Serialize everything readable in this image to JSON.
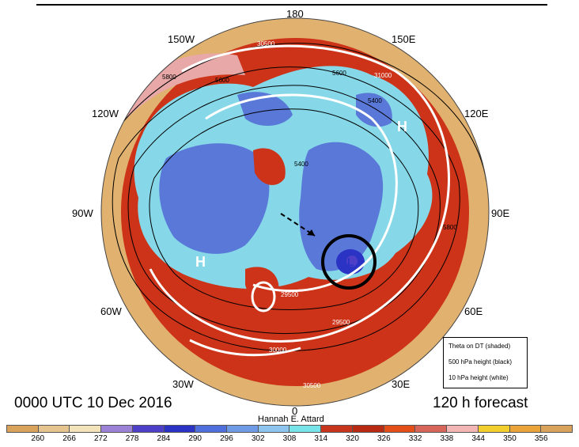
{
  "map": {
    "longitude_labels": {
      "lon_180": "180",
      "lon_150w": "150W",
      "lon_150e": "150E",
      "lon_120w": "120W",
      "lon_120e": "120E",
      "lon_90w": "90W",
      "lon_90e": "90E",
      "lon_60w": "60W",
      "lon_60e": "60E",
      "lon_30w": "30W",
      "lon_30e": "30E",
      "lon_0": "0"
    },
    "pressure_centers": [
      "H",
      "H",
      "L"
    ],
    "contour_labels_black": [
      "5400",
      "5600",
      "5800",
      "5600",
      "5400",
      "5800"
    ],
    "contour_labels_white": [
      "30500",
      "31000",
      "29500",
      "30000",
      "30500",
      "29500"
    ],
    "colors": {
      "ocean_ring": "#e0b16f",
      "warm": "#cc3318",
      "mid_blue": "#5a78d8",
      "light_cyan": "#86d8e8",
      "pink": "#e8a8a8"
    }
  },
  "footer": {
    "valid_time": "0000 UTC 10 Dec 2016",
    "forecast_hour": "120 h forecast",
    "author": "Hannah E. Attard"
  },
  "legend": {
    "line1": "Theta on DT (shaded)",
    "line2": "500 hPa height (black)",
    "line3": "10 hPa height (white)"
  },
  "colorbar": {
    "labels": [
      "260",
      "266",
      "272",
      "278",
      "284",
      "290",
      "296",
      "302",
      "308",
      "314",
      "320",
      "326",
      "332",
      "338",
      "344",
      "350",
      "356"
    ],
    "colors": [
      "#d9a35c",
      "#e6c490",
      "#f2e3bb",
      "#9b82d6",
      "#4e3fc9",
      "#2b33c4",
      "#4e6fdc",
      "#6f9be6",
      "#8ec5ee",
      "#76e4e8",
      "#c7351c",
      "#b82a12",
      "#e44e18",
      "#d8655a",
      "#f3b6b4",
      "#f2cf2c",
      "#eaa43a",
      "#d9a35c"
    ]
  }
}
